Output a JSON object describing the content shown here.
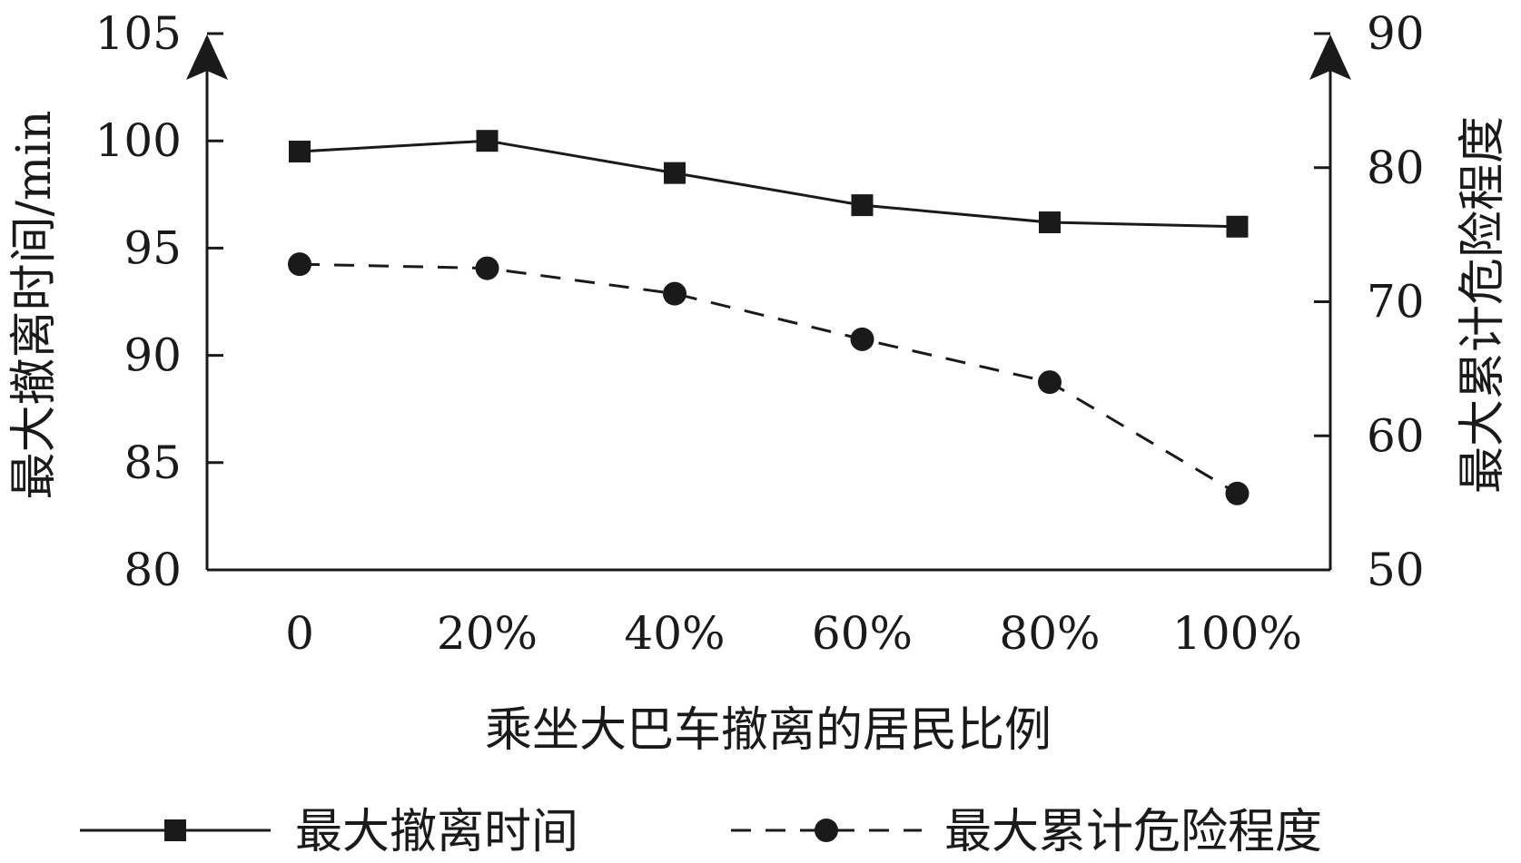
{
  "chart_data": {
    "type": "line",
    "categories": [
      "0",
      "20%",
      "40%",
      "60%",
      "80%",
      "100%"
    ],
    "xlabel": "乘坐大巴车撤离的居民比例",
    "ylabel_left": "最大撤离时间/min",
    "ylabel_right": "最大累计危险程度",
    "ylim_left": [
      80,
      105
    ],
    "yticks_left": [
      "80",
      "85",
      "90",
      "95",
      "100",
      "105"
    ],
    "ylim_right": [
      50,
      90
    ],
    "yticks_right": [
      "50",
      "60",
      "70",
      "80",
      "90"
    ],
    "grid": false,
    "legend_position": "bottom",
    "series": [
      {
        "name": "最大撤离时间",
        "axis": "left",
        "marker": "square",
        "line_style": "solid",
        "color": "#1a1a1a",
        "values": [
          99.5,
          100.0,
          98.5,
          97.0,
          96.2,
          96.0
        ]
      },
      {
        "name": "最大累计危险程度",
        "axis": "right",
        "marker": "circle",
        "line_style": "dashed",
        "color": "#1a1a1a",
        "values": [
          72.8,
          72.5,
          70.6,
          67.2,
          64.0,
          55.7
        ]
      }
    ]
  }
}
